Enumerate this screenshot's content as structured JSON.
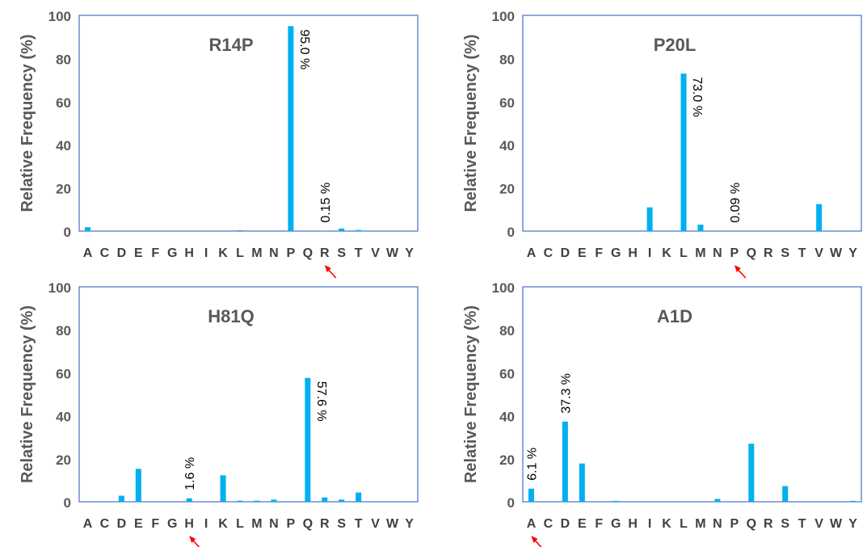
{
  "chart_data": [
    {
      "type": "bar",
      "title": "R14P",
      "ylabel": "Relative Frequency (%)",
      "xlabel": "",
      "ylim": [
        0,
        100
      ],
      "yticks": [
        "0",
        "20",
        "40",
        "60",
        "80",
        "100"
      ],
      "categories": [
        "A",
        "C",
        "D",
        "E",
        "F",
        "G",
        "H",
        "I",
        "K",
        "L",
        "M",
        "N",
        "P",
        "Q",
        "R",
        "S",
        "T",
        "V",
        "W",
        "Y"
      ],
      "values": [
        1.8,
        0,
        0,
        0,
        0,
        0,
        0,
        0,
        0,
        0.4,
        0,
        0,
        95.0,
        0,
        0.15,
        1.2,
        0.5,
        0,
        0,
        0
      ],
      "bar_labels": [
        {
          "category": "P",
          "text": "95.0 %",
          "placement": "inside-right"
        },
        {
          "category": "R",
          "text": "0.15 %",
          "placement": "above"
        }
      ],
      "marked_category": "R",
      "color": "#00B0F0",
      "grid": false
    },
    {
      "type": "bar",
      "title": "P20L",
      "ylabel": "Relative Frequency (%)",
      "xlabel": "",
      "ylim": [
        0,
        100
      ],
      "yticks": [
        "0",
        "20",
        "40",
        "60",
        "80",
        "100"
      ],
      "categories": [
        "A",
        "C",
        "D",
        "E",
        "F",
        "G",
        "H",
        "I",
        "K",
        "L",
        "M",
        "N",
        "P",
        "Q",
        "R",
        "S",
        "T",
        "V",
        "W",
        "Y"
      ],
      "values": [
        0,
        0,
        0,
        0,
        0,
        0,
        0,
        11.0,
        0,
        73.0,
        3.0,
        0,
        0.09,
        0,
        0,
        0,
        0,
        12.5,
        0,
        0
      ],
      "bar_labels": [
        {
          "category": "L",
          "text": "73.0 %",
          "placement": "inside-right"
        },
        {
          "category": "P",
          "text": "0.09 %",
          "placement": "above"
        }
      ],
      "marked_category": "P",
      "color": "#00B0F0",
      "grid": false
    },
    {
      "type": "bar",
      "title": "H81Q",
      "ylabel": "Relative Frequency (%)",
      "xlabel": "",
      "ylim": [
        0,
        100
      ],
      "yticks": [
        "0",
        "20",
        "40",
        "60",
        "80",
        "100"
      ],
      "categories": [
        "A",
        "C",
        "D",
        "E",
        "F",
        "G",
        "H",
        "I",
        "K",
        "L",
        "M",
        "N",
        "P",
        "Q",
        "R",
        "S",
        "T",
        "V",
        "W",
        "Y"
      ],
      "values": [
        0,
        0,
        2.8,
        15.3,
        0,
        0,
        1.6,
        0,
        12.3,
        0.5,
        0.5,
        1.0,
        0,
        57.6,
        2.0,
        1.0,
        4.3,
        0,
        0,
        0
      ],
      "bar_labels": [
        {
          "category": "H",
          "text": "1.6 %",
          "placement": "above"
        },
        {
          "category": "Q",
          "text": "57.6 %",
          "placement": "inside-right"
        }
      ],
      "marked_category": "H",
      "color": "#00B0F0",
      "grid": false
    },
    {
      "type": "bar",
      "title": "A1D",
      "ylabel": "Relative Frequency (%)",
      "xlabel": "",
      "ylim": [
        0,
        100
      ],
      "yticks": [
        "0",
        "20",
        "40",
        "60",
        "80",
        "100"
      ],
      "categories": [
        "A",
        "C",
        "D",
        "E",
        "F",
        "G",
        "H",
        "I",
        "K",
        "L",
        "M",
        "N",
        "P",
        "Q",
        "R",
        "S",
        "T",
        "V",
        "W",
        "Y"
      ],
      "values": [
        6.1,
        0,
        37.3,
        17.8,
        0,
        0.4,
        0,
        0,
        0,
        0,
        0,
        1.3,
        0,
        27.0,
        0,
        7.3,
        0,
        0,
        0,
        0.4
      ],
      "bar_labels": [
        {
          "category": "A",
          "text": "6.1 %",
          "placement": "above"
        },
        {
          "category": "D",
          "text": "37.3 %",
          "placement": "above"
        }
      ],
      "marked_category": "A",
      "color": "#00B0F0",
      "grid": false
    }
  ]
}
